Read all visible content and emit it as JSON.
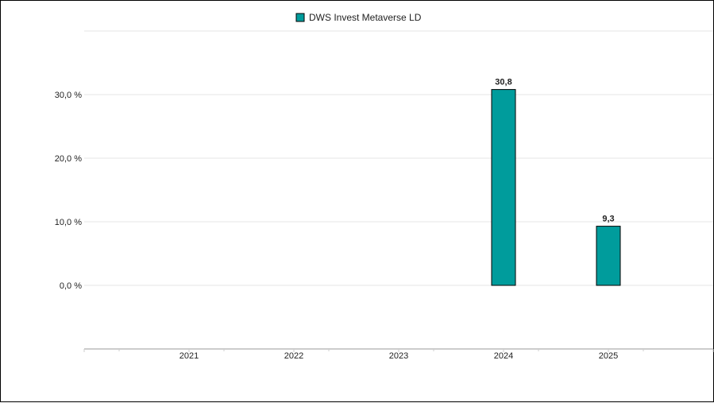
{
  "colors": {
    "bar_fill": "#009c9c",
    "bar_stroke": "#000000",
    "grid": "#e6e6e6",
    "axis": "#cccccc",
    "text": "#222222"
  },
  "chart_data": {
    "type": "bar",
    "categories": [
      "2021",
      "2022",
      "2023",
      "2024",
      "2025"
    ],
    "series": [
      {
        "name": "DWS Invest Metaverse LD",
        "values": [
          null,
          null,
          null,
          30.8,
          9.3
        ],
        "labels": [
          "",
          "",
          "",
          "30,8",
          "9,3"
        ]
      }
    ],
    "y_ticks": [
      0,
      10,
      20,
      30
    ],
    "y_tick_labels": [
      "0,0 %",
      "10,0 %",
      "20,0 %",
      "30,0 %"
    ],
    "ylim": [
      -10,
      40
    ],
    "grid": true,
    "legend_position": "top-center"
  }
}
